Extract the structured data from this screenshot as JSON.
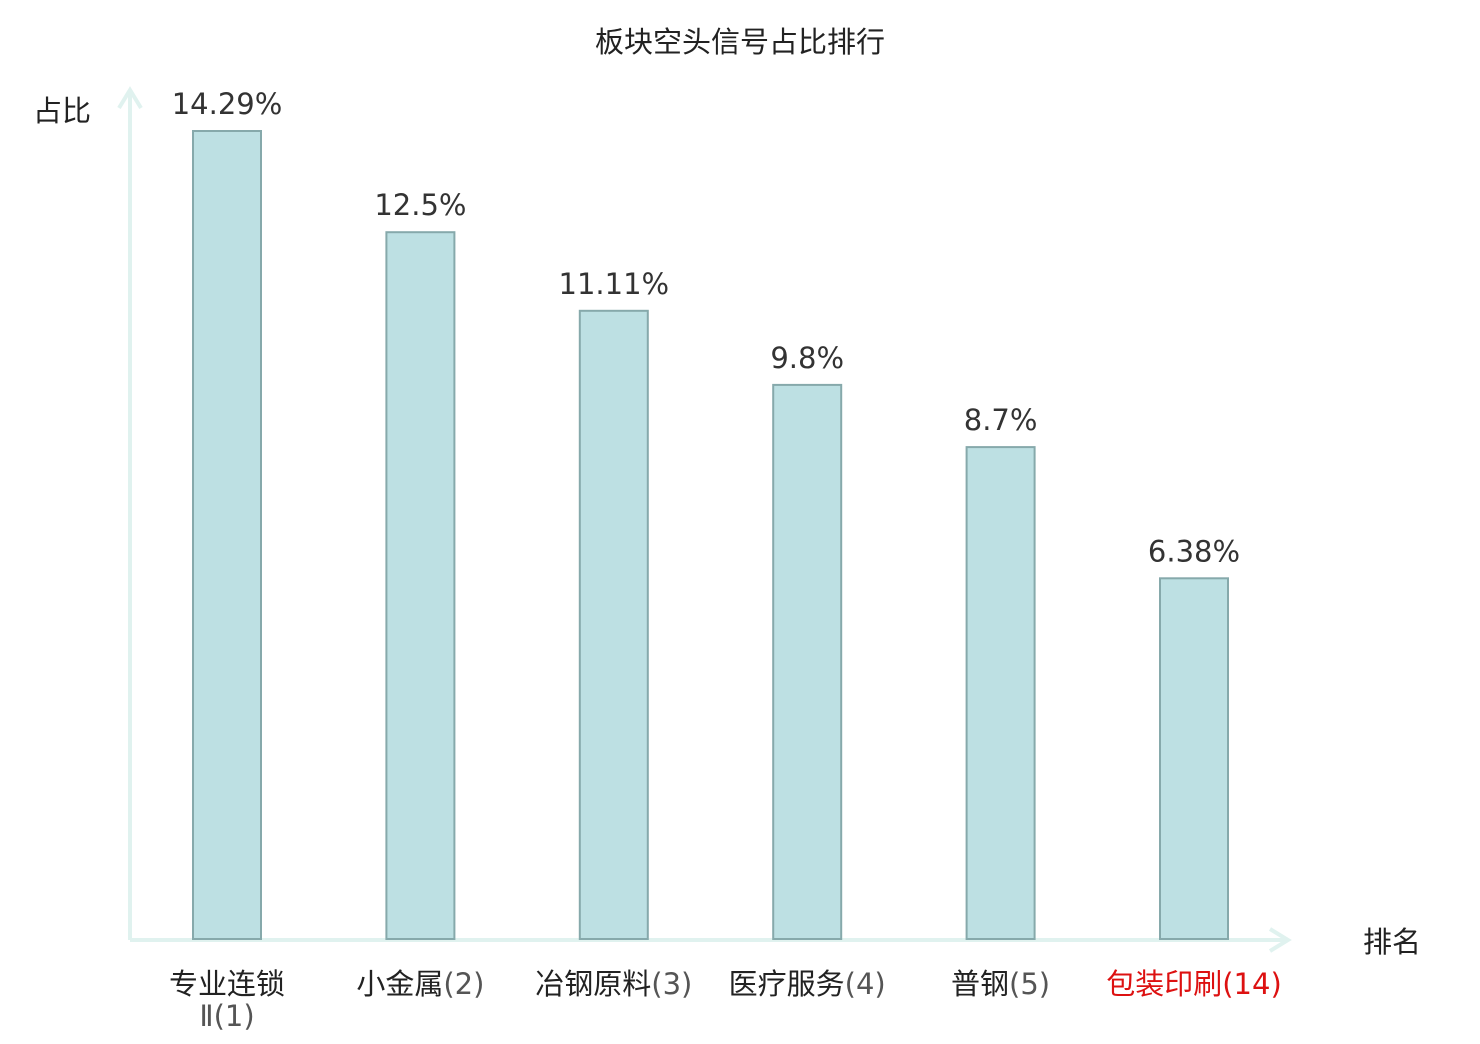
{
  "chart_data": {
    "type": "bar",
    "title": "板块空头信号占比排行",
    "ylabel": "占比",
    "xlabel": "排名",
    "ylim": [
      0,
      15.3
    ],
    "grid": false,
    "categories": [
      {
        "name": "专业连锁",
        "rank": "Ⅱ(1)",
        "highlight": false
      },
      {
        "name": "小金属",
        "rank": "(2)",
        "highlight": false
      },
      {
        "name": "冶钢原料",
        "rank": "(3)",
        "highlight": false
      },
      {
        "name": "医疗服务",
        "rank": "(4)",
        "highlight": false
      },
      {
        "name": "普钢",
        "rank": "(5)",
        "highlight": false
      },
      {
        "name": "包装印刷",
        "rank": "(14)",
        "highlight": true
      }
    ],
    "values": [
      14.29,
      12.5,
      11.11,
      9.8,
      8.7,
      6.38
    ],
    "value_labels": [
      "14.29%",
      "12.5%",
      "11.11%",
      "9.8%",
      "8.7%",
      "6.38%"
    ]
  },
  "colors": {
    "bar_fill": "#bde0e3",
    "bar_stroke": "#86a9ab",
    "axis": "#e0f2ef",
    "text": "#333333",
    "highlight": "#dd1111"
  }
}
